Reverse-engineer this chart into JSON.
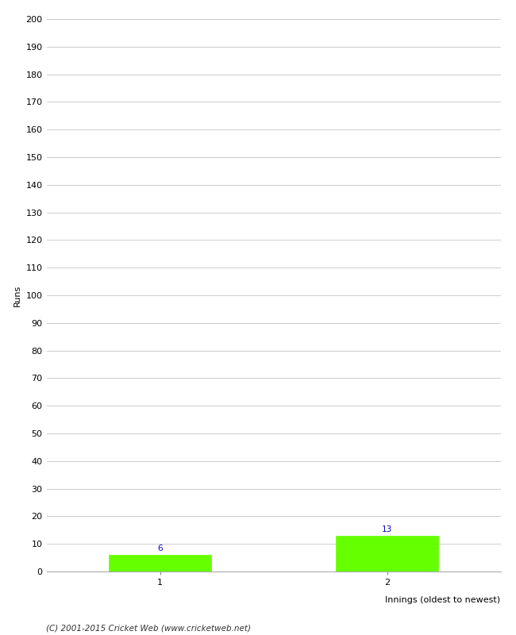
{
  "categories": [
    1,
    2
  ],
  "values": [
    6,
    13
  ],
  "bar_color": "#66ff00",
  "bar_edge_color": "#66ff00",
  "ylabel": "Runs",
  "xlabel": "Innings (oldest to newest)",
  "ylim": [
    0,
    200
  ],
  "ytick_step": 10,
  "value_label_color": "#0000cc",
  "value_label_fontsize": 7.5,
  "axis_label_fontsize": 8,
  "tick_label_fontsize": 8,
  "footer_text": "(C) 2001-2015 Cricket Web (www.cricketweb.net)",
  "background_color": "#ffffff",
  "grid_color": "#cccccc",
  "bar_width": 0.45
}
